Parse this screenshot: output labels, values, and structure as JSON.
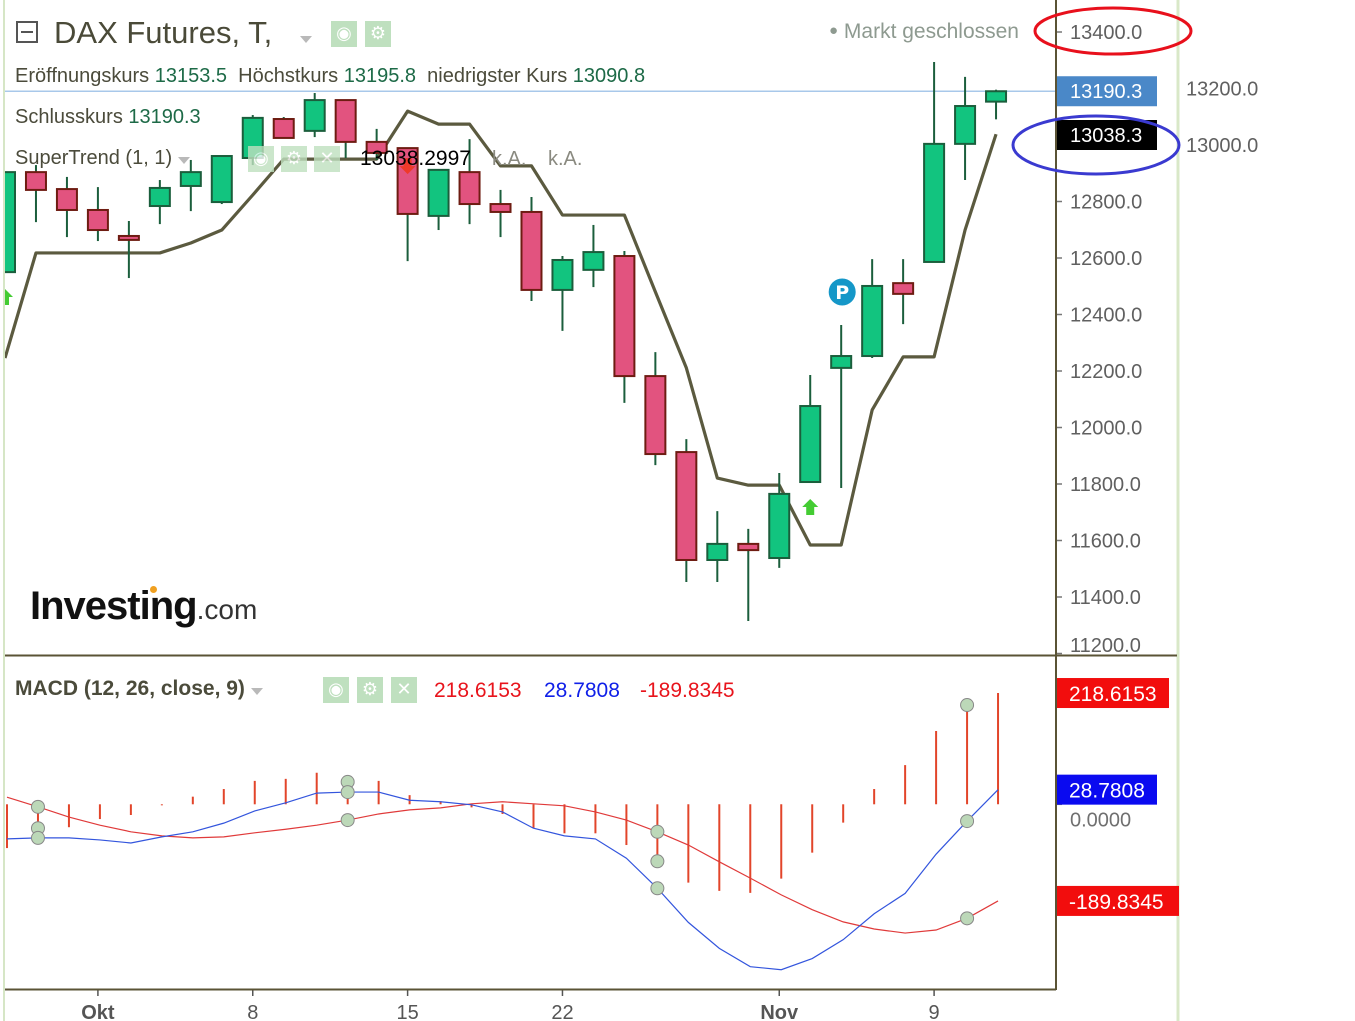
{
  "header": {
    "title": "DAX Futures, T,",
    "market_status": "Markt geschlossen",
    "ohlc": {
      "open_label": "Eröffnungskurs",
      "open": "13153.5",
      "high_label": "Höchstkurs",
      "high": "13195.8",
      "low_label": "niedrigster Kurs",
      "low": "13090.8",
      "close_label": "Schlusskurs",
      "close": "13190.3"
    }
  },
  "supertrend_legend": {
    "label": "SuperTrend (1, 1)",
    "value": "13038.2997",
    "v2": "k.A.",
    "v3": "k.A."
  },
  "macd_legend": {
    "label": "MACD (12, 26, close, 9)",
    "hist": "218.6153",
    "macd": "28.7808",
    "signal": "-189.8345"
  },
  "icons": {
    "eye": "eye-icon",
    "gear": "gear-icon",
    "close": "close-icon",
    "collapse": "collapse-icon"
  },
  "logo": {
    "main": "Investing",
    "suffix": ".com"
  },
  "colors": {
    "up": "#12c47f",
    "up_border": "#1b5e3c",
    "down": "#e2537f",
    "down_border": "#6e1c12",
    "supertrend": "#5b5a3f",
    "macd_line": "#3355dd",
    "signal_line": "#e03a3a",
    "histogram": "#e2452a",
    "last_price": "#4a88c8",
    "annotation_red": "#e8101c",
    "annotation_blue": "#3a3ad0"
  },
  "chart_data": [
    {
      "type": "candlestick",
      "title": "DAX Futures, T,",
      "ylim": [
        11200,
        13450
      ],
      "yticks": [
        "13400.0",
        "13200.0",
        "13000.0",
        "12800.0",
        "12600.0",
        "12400.0",
        "12200.0",
        "12000.0",
        "11800.0",
        "11600.0",
        "11400.0",
        "11200.0"
      ],
      "xticks": [
        {
          "label": "Okt",
          "index": 3,
          "bold": true
        },
        {
          "label": "8",
          "index": 8,
          "bold": false
        },
        {
          "label": "15",
          "index": 13,
          "bold": false
        },
        {
          "label": "22",
          "index": 18,
          "bold": false
        },
        {
          "label": "Nov",
          "index": 25,
          "bold": true
        },
        {
          "label": "9",
          "index": 30,
          "bold": false
        }
      ],
      "ohlc": [
        [
          12550,
          12904,
          12550,
          12904
        ],
        [
          12904,
          12929,
          12727,
          12841
        ],
        [
          12844,
          12887,
          12674,
          12770
        ],
        [
          12770,
          12851,
          12660,
          12699
        ],
        [
          12678,
          12731,
          12529,
          12664
        ],
        [
          12784,
          12876,
          12720,
          12848
        ],
        [
          12855,
          12947,
          12766,
          12904
        ],
        [
          12798,
          12961,
          12791,
          12961
        ],
        [
          12954,
          13106,
          12929,
          13096
        ],
        [
          13092,
          13099,
          13025,
          13025
        ],
        [
          13050,
          13184,
          13028,
          13159
        ],
        [
          13159,
          13159,
          12954,
          13011
        ],
        [
          13011,
          13057,
          12947,
          12972
        ],
        [
          12989,
          12989,
          12589,
          12756
        ],
        [
          12749,
          12915,
          12699,
          12912
        ],
        [
          12904,
          13021,
          12720,
          12791
        ],
        [
          12791,
          12841,
          12674,
          12763
        ],
        [
          12763,
          12816,
          12448,
          12487
        ],
        [
          12487,
          12607,
          12342,
          12593
        ],
        [
          12558,
          12717,
          12497,
          12621
        ],
        [
          12607,
          12625,
          12087,
          12182
        ],
        [
          12182,
          12267,
          11867,
          11906
        ],
        [
          11913,
          11959,
          11453,
          11531
        ],
        [
          11531,
          11704,
          11453,
          11588
        ],
        [
          11588,
          11641,
          11315,
          11566
        ],
        [
          11538,
          11839,
          11503,
          11765
        ],
        [
          11807,
          12186,
          11807,
          12076
        ],
        [
          12211,
          12363,
          11786,
          12253
        ],
        [
          12253,
          12596,
          12246,
          12501
        ],
        [
          12511,
          12596,
          12366,
          12473
        ],
        [
          12586,
          13294,
          12586,
          13004
        ],
        [
          13004,
          13241,
          12876,
          13138
        ],
        [
          13153.5,
          13195.8,
          13090.8,
          13190.3
        ]
      ],
      "supertrend": [
        12246,
        12618,
        12618,
        12618,
        12618,
        12618,
        12653,
        12699,
        12823,
        12950,
        12950,
        12950,
        12950,
        13120,
        13074,
        13074,
        12926,
        12926,
        12752,
        12752,
        12752,
        12480,
        12211,
        11821,
        11796,
        11796,
        11584,
        11584,
        12062,
        12250,
        12250,
        12699,
        13038.3
      ],
      "signals": [
        {
          "index": 0,
          "type": "buy-arrow"
        },
        {
          "index": 13,
          "type": "sell-arrow"
        },
        {
          "index": 26,
          "type": "buy-arrow"
        },
        {
          "index": 27,
          "type": "P"
        }
      ],
      "last_price": "13190.3",
      "supertrend_price": "13038.3"
    },
    {
      "type": "macd",
      "title": "MACD (12, 26, close, 9)",
      "ylim": [
        -340,
        230
      ],
      "yticks": [
        "0.0000"
      ],
      "histogram": [
        -86,
        -47,
        -45,
        -29,
        -21,
        -2,
        15,
        30,
        46,
        50,
        62,
        44,
        46,
        18,
        6,
        -6,
        -19,
        -47,
        -57,
        -57,
        -80,
        -112,
        -154,
        -170,
        -174,
        -146,
        -95,
        -36,
        30,
        77,
        144,
        195,
        218.6153
      ],
      "macd": [
        -68,
        -66,
        -66,
        -70,
        -76,
        -64,
        -54,
        -37,
        -13,
        3,
        22,
        24,
        24,
        8,
        5,
        -1,
        -15,
        -47,
        -62,
        -68,
        -106,
        -165,
        -232,
        -283,
        -319,
        -325,
        -303,
        -266,
        -215,
        -175,
        -98,
        -33,
        28.7808
      ],
      "signal": [
        14,
        -5,
        -25,
        -41,
        -54,
        -62,
        -66,
        -64,
        -56,
        -49,
        -41,
        -31,
        -19,
        -11,
        -7,
        1,
        5,
        1,
        -3,
        -15,
        -31,
        -54,
        -80,
        -113,
        -145,
        -178,
        -207,
        -231,
        -245,
        -253,
        -247,
        -224,
        -189.8345
      ],
      "marker_indices": [
        1,
        11,
        21,
        31
      ]
    }
  ]
}
